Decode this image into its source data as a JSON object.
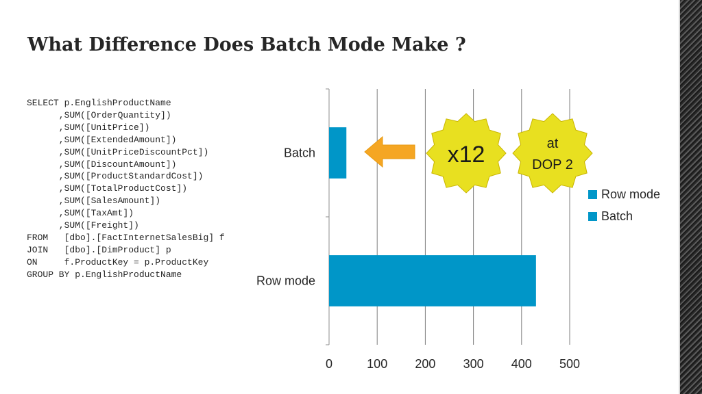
{
  "slide": {
    "title": "What Difference Does Batch Mode Make ?",
    "code_lines": [
      "SELECT p.EnglishProductName",
      "      ,SUM([OrderQuantity])",
      "      ,SUM([UnitPrice])",
      "      ,SUM([ExtendedAmount])",
      "      ,SUM([UnitPriceDiscountPct])",
      "      ,SUM([DiscountAmount])",
      "      ,SUM([ProductStandardCost])",
      "      ,SUM([TotalProductCost])",
      "      ,SUM([SalesAmount])",
      "      ,SUM([TaxAmt])",
      "      ,SUM([Freight])",
      "FROM   [dbo].[FactInternetSalesBig] f",
      "JOIN   [dbo].[DimProduct] p",
      "ON     f.ProductKey = p.ProductKey",
      "GROUP BY p.EnglishProductName"
    ]
  },
  "chart_data": {
    "type": "bar",
    "orientation": "horizontal",
    "categories": [
      "Row mode",
      "Batch"
    ],
    "series": [
      {
        "name": "Row mode",
        "category": "Row mode",
        "value": 430,
        "color": "#0096C8"
      },
      {
        "name": "Batch",
        "category": "Batch",
        "value": 36,
        "color": "#0096C8"
      }
    ],
    "xlim": [
      0,
      500
    ],
    "x_ticks": [
      0,
      100,
      200,
      300,
      400,
      500
    ],
    "grid": "vertical",
    "legend": "right",
    "annotations": {
      "badge_speedup": "x12",
      "badge_dop_line1": "at",
      "badge_dop_line2": "DOP 2",
      "arrow": "left",
      "badge_color": "#E8E020",
      "arrow_color": "#F5A623"
    }
  }
}
